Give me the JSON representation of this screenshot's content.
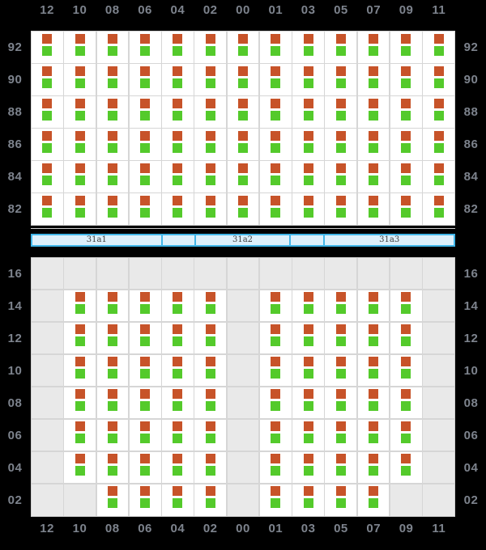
{
  "colors": {
    "background": "#000000",
    "grid_line": "#d6d6d6",
    "cell_fill": "#ffffff",
    "empty_fill": "#e9e9e9",
    "label": "#7d838d",
    "square_orange": "#c75329",
    "square_green": "#54ca2b",
    "bar_border": "#41b6e9",
    "bar_fill": "#ddf0fb",
    "bar_text": "#3c3c3c",
    "separator_line": "#cfcfcf"
  },
  "top_axis": {
    "labels": [
      "12",
      "10",
      "08",
      "06",
      "04",
      "02",
      "00",
      "01",
      "03",
      "05",
      "07",
      "09",
      "11"
    ]
  },
  "bottom_axis": {
    "labels": [
      "12",
      "10",
      "08",
      "06",
      "04",
      "02",
      "00",
      "01",
      "03",
      "05",
      "07",
      "09",
      "11"
    ]
  },
  "deck_grid": {
    "tier_labels": [
      "92",
      "90",
      "88",
      "86",
      "84",
      "82"
    ],
    "occupancy": [
      [
        1,
        1,
        1,
        1,
        1,
        1,
        1,
        1,
        1,
        1,
        1,
        1,
        1
      ],
      [
        1,
        1,
        1,
        1,
        1,
        1,
        1,
        1,
        1,
        1,
        1,
        1,
        1
      ],
      [
        1,
        1,
        1,
        1,
        1,
        1,
        1,
        1,
        1,
        1,
        1,
        1,
        1
      ],
      [
        1,
        1,
        1,
        1,
        1,
        1,
        1,
        1,
        1,
        1,
        1,
        1,
        1
      ],
      [
        1,
        1,
        1,
        1,
        1,
        1,
        1,
        1,
        1,
        1,
        1,
        1,
        1
      ],
      [
        1,
        1,
        1,
        1,
        1,
        1,
        1,
        1,
        1,
        1,
        1,
        1,
        1
      ]
    ]
  },
  "hold_grid": {
    "tier_labels": [
      "16",
      "14",
      "12",
      "10",
      "08",
      "06",
      "04",
      "02"
    ],
    "occupancy": [
      [
        0,
        0,
        0,
        0,
        0,
        0,
        0,
        0,
        0,
        0,
        0,
        0,
        0
      ],
      [
        0,
        1,
        1,
        1,
        1,
        1,
        0,
        1,
        1,
        1,
        1,
        1,
        0
      ],
      [
        0,
        1,
        1,
        1,
        1,
        1,
        0,
        1,
        1,
        1,
        1,
        1,
        0
      ],
      [
        0,
        1,
        1,
        1,
        1,
        1,
        0,
        1,
        1,
        1,
        1,
        1,
        0
      ],
      [
        0,
        1,
        1,
        1,
        1,
        1,
        0,
        1,
        1,
        1,
        1,
        1,
        0
      ],
      [
        0,
        1,
        1,
        1,
        1,
        1,
        0,
        1,
        1,
        1,
        1,
        1,
        0
      ],
      [
        0,
        1,
        1,
        1,
        1,
        1,
        0,
        1,
        1,
        1,
        1,
        1,
        0
      ],
      [
        0,
        0,
        1,
        1,
        1,
        1,
        0,
        1,
        1,
        1,
        1,
        0,
        0
      ]
    ]
  },
  "bay_bar": {
    "segments": [
      {
        "label": "31a1",
        "width": 162
      },
      {
        "label": "",
        "width": 40
      },
      {
        "label": "31a2",
        "width": 118
      },
      {
        "label": "",
        "width": 41
      },
      {
        "label": "31a3",
        "width": 162
      }
    ]
  },
  "slot_squares": [
    "orange",
    "green"
  ]
}
